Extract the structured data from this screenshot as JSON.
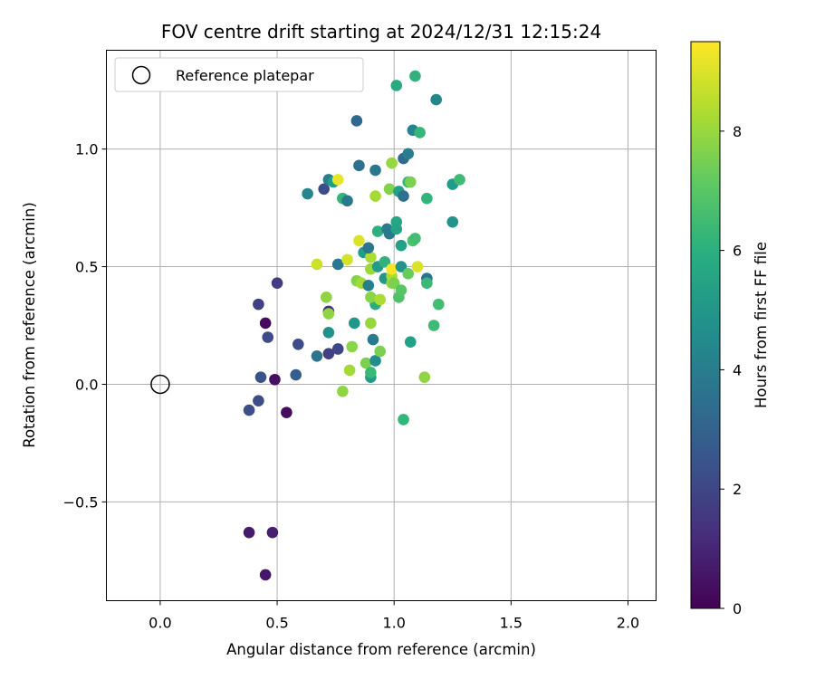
{
  "chart_data": {
    "type": "scatter",
    "title": "FOV centre drift starting at 2024/12/31 12:15:24",
    "xlabel": "Angular distance from reference (arcmin)",
    "ylabel": "Rotation from reference (arcmin)",
    "xlim": [
      -0.23,
      2.12
    ],
    "ylim": [
      -0.92,
      1.42
    ],
    "xticks": [
      0.0,
      0.5,
      1.0,
      1.5,
      2.0
    ],
    "xtick_labels": [
      "0.0",
      "0.5",
      "1.0",
      "1.5",
      "2.0"
    ],
    "yticks": [
      -0.5,
      0.0,
      0.5,
      1.0
    ],
    "ytick_labels": [
      "−0.5",
      "0.0",
      "0.5",
      "1.0"
    ],
    "grid": true,
    "legend": {
      "placement": "top-left",
      "entries": [
        "Reference platepar"
      ]
    },
    "reference_point": {
      "x": 0.0,
      "y": 0.0
    },
    "colorbar": {
      "label": "Hours from first FF file",
      "range": [
        0,
        9.5
      ],
      "ticks": [
        0,
        2,
        4,
        6,
        8
      ],
      "tick_labels": [
        "0",
        "2",
        "4",
        "6",
        "8"
      ],
      "colormap": "viridis"
    },
    "points": [
      {
        "x": 0.45,
        "y": -0.81,
        "c": 0.6
      },
      {
        "x": 0.38,
        "y": -0.63,
        "c": 0.7
      },
      {
        "x": 0.48,
        "y": -0.63,
        "c": 0.8
      },
      {
        "x": 0.54,
        "y": -0.12,
        "c": 0.3
      },
      {
        "x": 0.49,
        "y": 0.02,
        "c": 0.4
      },
      {
        "x": 0.45,
        "y": 0.26,
        "c": 0.3
      },
      {
        "x": 0.38,
        "y": -0.11,
        "c": 2.3
      },
      {
        "x": 0.42,
        "y": -0.07,
        "c": 2.2
      },
      {
        "x": 0.43,
        "y": 0.03,
        "c": 2.4
      },
      {
        "x": 0.46,
        "y": 0.2,
        "c": 2.1
      },
      {
        "x": 0.42,
        "y": 0.34,
        "c": 1.8
      },
      {
        "x": 0.5,
        "y": 0.43,
        "c": 1.7
      },
      {
        "x": 0.58,
        "y": 0.04,
        "c": 2.8
      },
      {
        "x": 0.59,
        "y": 0.17,
        "c": 2.2
      },
      {
        "x": 0.67,
        "y": 0.12,
        "c": 3.6
      },
      {
        "x": 0.72,
        "y": 0.13,
        "c": 1.8
      },
      {
        "x": 0.72,
        "y": 0.31,
        "c": 1.2
      },
      {
        "x": 0.76,
        "y": 0.15,
        "c": 2.0
      },
      {
        "x": 0.72,
        "y": 0.22,
        "c": 4.8
      },
      {
        "x": 0.72,
        "y": 0.3,
        "c": 7.9
      },
      {
        "x": 0.71,
        "y": 0.37,
        "c": 7.9
      },
      {
        "x": 0.67,
        "y": 0.51,
        "c": 8.8
      },
      {
        "x": 0.76,
        "y": 0.51,
        "c": 3.8
      },
      {
        "x": 0.78,
        "y": -0.03,
        "c": 7.9
      },
      {
        "x": 0.81,
        "y": 0.06,
        "c": 8.2
      },
      {
        "x": 0.82,
        "y": 0.16,
        "c": 7.8
      },
      {
        "x": 0.83,
        "y": 0.26,
        "c": 5.0
      },
      {
        "x": 0.8,
        "y": 0.53,
        "c": 8.9
      },
      {
        "x": 0.84,
        "y": 0.44,
        "c": 7.7
      },
      {
        "x": 0.86,
        "y": 0.43,
        "c": 8.2
      },
      {
        "x": 0.87,
        "y": 0.56,
        "c": 5.2
      },
      {
        "x": 0.85,
        "y": 0.61,
        "c": 9.0
      },
      {
        "x": 0.88,
        "y": 0.09,
        "c": 7.6
      },
      {
        "x": 0.9,
        "y": 0.03,
        "c": 5.2
      },
      {
        "x": 0.9,
        "y": 0.05,
        "c": 6.4
      },
      {
        "x": 0.92,
        "y": 0.1,
        "c": 4.6
      },
      {
        "x": 0.91,
        "y": 0.19,
        "c": 3.9
      },
      {
        "x": 0.9,
        "y": 0.26,
        "c": 8.0
      },
      {
        "x": 0.92,
        "y": 0.34,
        "c": 5.9
      },
      {
        "x": 0.9,
        "y": 0.37,
        "c": 7.8
      },
      {
        "x": 0.89,
        "y": 0.42,
        "c": 4.1
      },
      {
        "x": 0.9,
        "y": 0.49,
        "c": 8.1
      },
      {
        "x": 0.9,
        "y": 0.54,
        "c": 8.3
      },
      {
        "x": 0.89,
        "y": 0.58,
        "c": 3.7
      },
      {
        "x": 0.94,
        "y": 0.14,
        "c": 7.6
      },
      {
        "x": 0.94,
        "y": 0.36,
        "c": 8.3
      },
      {
        "x": 0.93,
        "y": 0.5,
        "c": 5.2
      },
      {
        "x": 0.96,
        "y": 0.52,
        "c": 6.1
      },
      {
        "x": 0.96,
        "y": 0.45,
        "c": 5.0
      },
      {
        "x": 0.99,
        "y": 0.43,
        "c": 8.0
      },
      {
        "x": 0.99,
        "y": 0.46,
        "c": 8.3
      },
      {
        "x": 0.99,
        "y": 0.49,
        "c": 9.4
      },
      {
        "x": 1.0,
        "y": 0.43,
        "c": 7.6
      },
      {
        "x": 1.02,
        "y": 0.37,
        "c": 6.8
      },
      {
        "x": 1.03,
        "y": 0.4,
        "c": 7.0
      },
      {
        "x": 1.03,
        "y": 0.5,
        "c": 4.9
      },
      {
        "x": 0.93,
        "y": 0.65,
        "c": 6.0
      },
      {
        "x": 0.97,
        "y": 0.66,
        "c": 4.1
      },
      {
        "x": 0.98,
        "y": 0.64,
        "c": 3.8
      },
      {
        "x": 1.01,
        "y": 0.69,
        "c": 5.6
      },
      {
        "x": 1.01,
        "y": 0.66,
        "c": 5.5
      },
      {
        "x": 1.03,
        "y": 0.59,
        "c": 5.4
      },
      {
        "x": 1.04,
        "y": -0.15,
        "c": 6.3
      },
      {
        "x": 1.07,
        "y": 0.18,
        "c": 5.4
      },
      {
        "x": 1.06,
        "y": 0.47,
        "c": 7.3
      },
      {
        "x": 1.08,
        "y": 0.61,
        "c": 6.8
      },
      {
        "x": 1.09,
        "y": 0.62,
        "c": 6.6
      },
      {
        "x": 1.1,
        "y": 0.5,
        "c": 9.0
      },
      {
        "x": 1.13,
        "y": 0.03,
        "c": 7.9
      },
      {
        "x": 1.14,
        "y": 0.45,
        "c": 3.6
      },
      {
        "x": 1.14,
        "y": 0.43,
        "c": 6.4
      },
      {
        "x": 1.17,
        "y": 0.25,
        "c": 6.5
      },
      {
        "x": 1.19,
        "y": 0.34,
        "c": 6.6
      },
      {
        "x": 0.63,
        "y": 0.81,
        "c": 4.4
      },
      {
        "x": 0.7,
        "y": 0.83,
        "c": 2.2
      },
      {
        "x": 0.72,
        "y": 0.87,
        "c": 4.0
      },
      {
        "x": 0.74,
        "y": 0.86,
        "c": 5.3
      },
      {
        "x": 0.76,
        "y": 0.87,
        "c": 9.2
      },
      {
        "x": 0.78,
        "y": 0.79,
        "c": 6.2
      },
      {
        "x": 0.8,
        "y": 0.78,
        "c": 3.8
      },
      {
        "x": 0.85,
        "y": 0.93,
        "c": 3.5
      },
      {
        "x": 0.84,
        "y": 1.12,
        "c": 3.2
      },
      {
        "x": 0.92,
        "y": 0.91,
        "c": 3.8
      },
      {
        "x": 0.92,
        "y": 0.8,
        "c": 8.2
      },
      {
        "x": 0.98,
        "y": 0.83,
        "c": 7.7
      },
      {
        "x": 0.99,
        "y": 0.94,
        "c": 8.0
      },
      {
        "x": 1.02,
        "y": 0.82,
        "c": 5.4
      },
      {
        "x": 1.04,
        "y": 0.8,
        "c": 3.5
      },
      {
        "x": 1.04,
        "y": 0.96,
        "c": 3.3
      },
      {
        "x": 1.06,
        "y": 0.98,
        "c": 4.0
      },
      {
        "x": 1.06,
        "y": 0.86,
        "c": 6.3
      },
      {
        "x": 1.07,
        "y": 0.86,
        "c": 7.6
      },
      {
        "x": 1.08,
        "y": 1.08,
        "c": 4.3
      },
      {
        "x": 1.11,
        "y": 1.07,
        "c": 6.3
      },
      {
        "x": 1.14,
        "y": 0.79,
        "c": 6.2
      },
      {
        "x": 1.01,
        "y": 1.27,
        "c": 5.8
      },
      {
        "x": 1.09,
        "y": 1.31,
        "c": 6.1
      },
      {
        "x": 1.18,
        "y": 1.21,
        "c": 4.4
      },
      {
        "x": 1.25,
        "y": 0.85,
        "c": 5.2
      },
      {
        "x": 1.28,
        "y": 0.87,
        "c": 6.5
      },
      {
        "x": 1.25,
        "y": 0.69,
        "c": 4.9
      }
    ]
  }
}
